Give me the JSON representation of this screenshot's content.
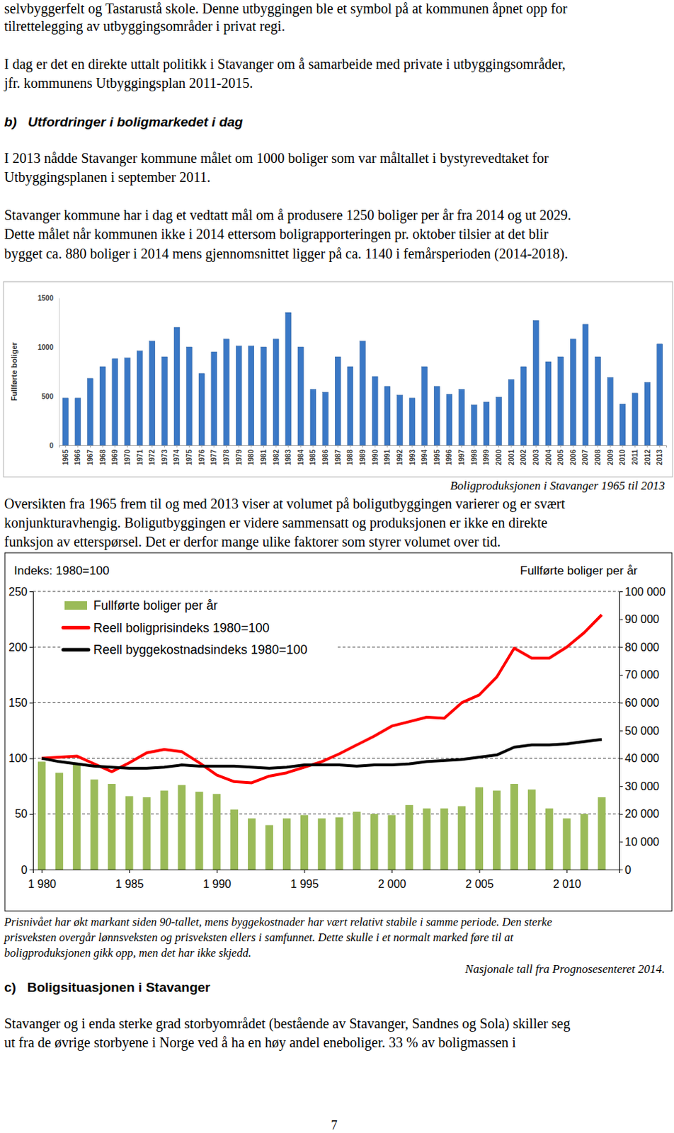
{
  "document": {
    "p1": [
      "selvbyggerfelt og Tastarustå skole. Denne utbyggingen ble et symbol på at kommunen åpnet opp for",
      "tilrettelegging av utbyggingsområder i privat regi."
    ],
    "p2": [
      "I dag er det en direkte uttalt politikk i Stavanger om å samarbeide med private i utbyggingsområder,",
      "jfr. kommunens Utbyggingsplan 2011-2015."
    ],
    "heading_b": "b)   Utfordringer i boligmarkedet i dag",
    "p3": [
      "I 2013 nådde Stavanger kommune målet om 1000 boliger som var måltallet i bystyrevedtaket for",
      "Utbyggingsplanen i september 2011."
    ],
    "p4": [
      "Stavanger kommune har i dag et vedtatt mål om å produsere 1250 boliger per år fra 2014 og ut 2029.",
      "Dette målet når kommunen ikke i 2014 ettersom boligrapporteringen pr. oktober tilsier at det blir",
      "bygget ca. 880 boliger i 2014 mens gjennomsnittet ligger på ca. 1140 i femårsperioden (2014-2018)."
    ],
    "p5": [
      "Oversikten fra 1965 frem til og med 2013 viser at volumet på boligutbyggingen varierer og er svært",
      "konjunkturavhengig. Boligutbyggingen er videre sammensatt og produksjonen er ikke en direkte",
      "funksjon av etterspørsel. Det er derfor mange ulike faktorer som styrer volumet over tid."
    ],
    "caption_2": [
      "Prisnivået har økt markant siden 90-tallet, mens byggekostnader har vært relativt stabile i samme periode. Den sterke",
      "prisveksten overgår lønnsveksten og prisveksten ellers i samfunnet. Dette skulle i et normalt marked føre til at",
      "boligproduksjonen gikk opp, men det har ikke skjedd."
    ],
    "source_2": "Nasjonale tall fra Prognosesenteret 2014.",
    "heading_c": "c)   Boligsituasjonen i Stavanger",
    "p6": [
      "Stavanger og i enda sterke grad storbyområdet (bestående av Stavanger, Sandnes og Sola) skiller seg",
      "ut fra de øvrige storbyene i Norge ved å ha en høy andel eneboliger. 33 % av boligmassen i"
    ],
    "page_number": "7"
  },
  "chart_data": [
    {
      "type": "bar",
      "title": "Boligproduksjonen i Stavanger 1965 til 2013",
      "y_label": "Fullførte boliger",
      "categories": [
        "1965",
        "1966",
        "1967",
        "1968",
        "1969",
        "1970",
        "1971",
        "1972",
        "1973",
        "1974",
        "1975",
        "1976",
        "1977",
        "1978",
        "1979",
        "1980",
        "1981",
        "1982",
        "1983",
        "1984",
        "1985",
        "1986",
        "1987",
        "1988",
        "1989",
        "1990",
        "1991",
        "1992",
        "1993",
        "1994",
        "1995",
        "1996",
        "1997",
        "1998",
        "1999",
        "2000",
        "2001",
        "2002",
        "2003",
        "2004",
        "2005",
        "2006",
        "2007",
        "2008",
        "2009",
        "2010",
        "2011",
        "2012",
        "2013"
      ],
      "values": [
        480,
        480,
        680,
        800,
        880,
        890,
        960,
        1060,
        900,
        1200,
        1000,
        730,
        950,
        1080,
        1010,
        1010,
        1000,
        1080,
        1350,
        1000,
        570,
        540,
        900,
        800,
        1060,
        700,
        600,
        510,
        480,
        800,
        600,
        520,
        570,
        410,
        440,
        490,
        670,
        800,
        1270,
        850,
        900,
        1080,
        1230,
        900,
        690,
        420,
        530,
        640,
        1030
      ],
      "color": "#3a78c6",
      "ylim": [
        0,
        1500
      ],
      "yticks": [
        0,
        500,
        1000,
        1500
      ],
      "grid": false
    },
    {
      "type": "combo",
      "y_label": "Indeks: 1980=100",
      "y2_label": "Fullførte boliger per år",
      "x": [
        1980,
        1981,
        1982,
        1983,
        1984,
        1985,
        1986,
        1987,
        1988,
        1989,
        1990,
        1991,
        1992,
        1993,
        1994,
        1995,
        1996,
        1997,
        1998,
        1999,
        2000,
        2001,
        2002,
        2003,
        2004,
        2005,
        2006,
        2007,
        2008,
        2009,
        2010,
        2011,
        2012
      ],
      "xlim": [
        1979.5,
        2013
      ],
      "xticks": [
        {
          "value": 1980,
          "label": "1 980"
        },
        {
          "value": 1985,
          "label": "1 985"
        },
        {
          "value": 1990,
          "label": "1 990"
        },
        {
          "value": 1995,
          "label": "1 995"
        },
        {
          "value": 2000,
          "label": "2 000"
        },
        {
          "value": 2005,
          "label": "2 005"
        },
        {
          "value": 2010,
          "label": "2 010"
        }
      ],
      "ylim": [
        0,
        250
      ],
      "yticks": [
        0,
        50,
        100,
        150,
        200,
        250
      ],
      "y2lim": [
        0,
        100000
      ],
      "y2ticks": [
        0,
        {
          "value": 10000,
          "label": "10 000"
        },
        {
          "value": 20000,
          "label": "20 000"
        },
        {
          "value": 30000,
          "label": "30 000"
        },
        {
          "value": 40000,
          "label": "40 000"
        },
        {
          "value": 50000,
          "label": "50 000"
        },
        {
          "value": 60000,
          "label": "60 000"
        },
        {
          "value": 70000,
          "label": "70 000"
        },
        {
          "value": 80000,
          "label": "80 000"
        },
        {
          "value": 90000,
          "label": "90 000"
        },
        {
          "value": 100000,
          "label": "100 000"
        }
      ],
      "grid": true,
      "legend": "upper left",
      "series": [
        {
          "name": "Fullførte boliger per år",
          "type": "bar",
          "axis": "y2",
          "color": "#9bbb59",
          "values": [
            38800,
            34800,
            38000,
            32400,
            30800,
            26400,
            26000,
            28400,
            30400,
            28000,
            27200,
            21600,
            18400,
            16000,
            18400,
            19600,
            18400,
            18800,
            20800,
            20000,
            19600,
            23200,
            22000,
            22000,
            22800,
            29600,
            28400,
            30800,
            28800,
            22000,
            18400,
            20000,
            26000
          ]
        },
        {
          "name": "Reell boligprisindeks 1980=100",
          "type": "line",
          "color": "#ff0000",
          "values": [
            100,
            101,
            102,
            95,
            88,
            96,
            105,
            108,
            106,
            96,
            85,
            79,
            78,
            84,
            87,
            92,
            97,
            104,
            112,
            120,
            129,
            133,
            137,
            136,
            150,
            157,
            173,
            199,
            190,
            190,
            200,
            213,
            229
          ]
        },
        {
          "name": "Reell byggekostnadsindeks 1980=100",
          "type": "line",
          "color": "#000000",
          "values": [
            100,
            97,
            95,
            93,
            92,
            91,
            91,
            92,
            94,
            93,
            93,
            93,
            92,
            91,
            92,
            94,
            94,
            94,
            93,
            94,
            94,
            95,
            97,
            98,
            99,
            101,
            103,
            110,
            112,
            112,
            113,
            115,
            117
          ]
        }
      ]
    }
  ]
}
